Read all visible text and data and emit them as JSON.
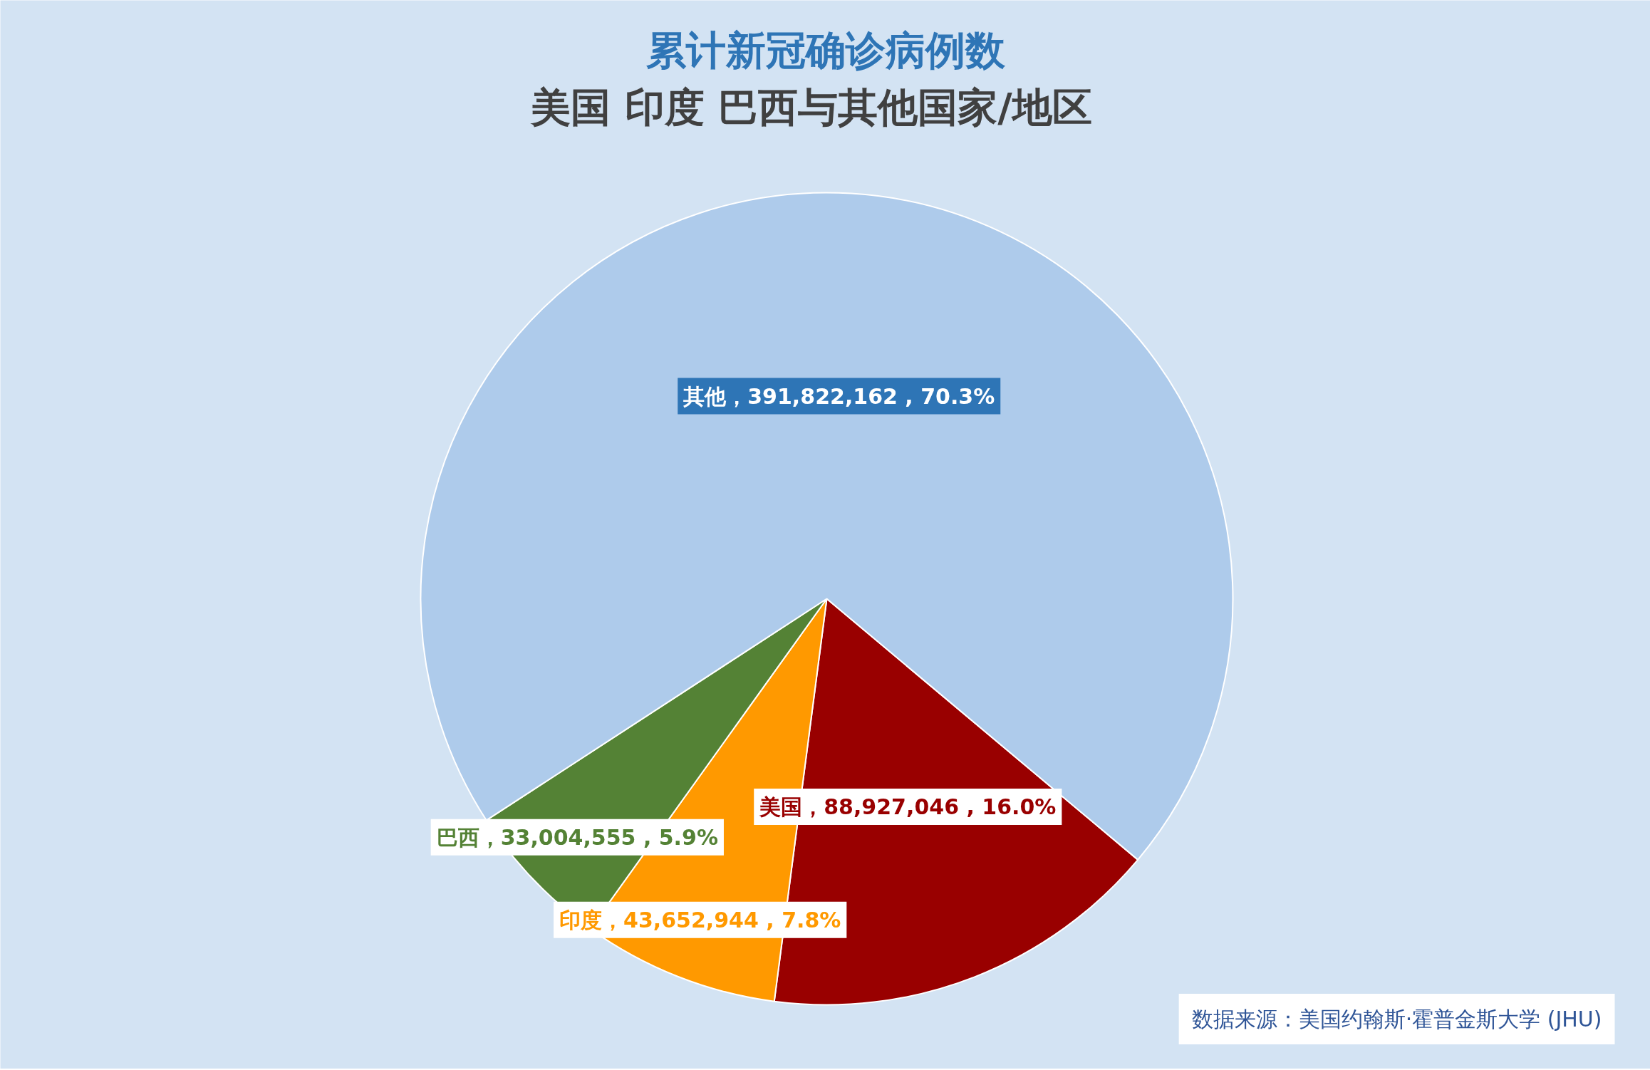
{
  "chart_data": {
    "type": "pie",
    "title": "累计新冠确诊病例数",
    "subtitle": "美国  印度  巴西与其他国家/地区",
    "categories": [
      "美国",
      "印度",
      "巴西",
      "其他"
    ],
    "values": [
      88927046,
      43652944,
      33004555,
      391822162
    ],
    "colors": [
      "#990000",
      "#ff9900",
      "#548235",
      "#aecbeb"
    ],
    "value_labels": [
      "88,927,046 , 16.0%",
      "43,652,944 , 7.8%",
      "33,004,555 , 5.9%",
      "391,822,162 , 70.3%"
    ],
    "annotations": [
      "数据来源：美国约翰斯·霍普金斯大学 (JHU)"
    ]
  }
}
